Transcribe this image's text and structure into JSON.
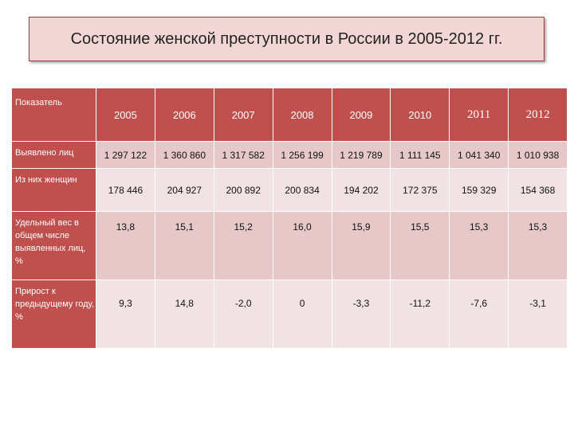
{
  "title": "Состояние женской преступности в России в 2005-2012 гг.",
  "table": {
    "header_label": "Показатель",
    "years": [
      "2005",
      "2006",
      "2007",
      "2008",
      "2009",
      "2010",
      "2011",
      "2012"
    ],
    "rows": [
      {
        "label": "Выявлено лиц",
        "values": [
          "1 297 122",
          "1 360 860",
          "1 317 582",
          "1 256 199",
          "1 219 789",
          "1 111 145",
          "1 041 340",
          "1 010 938"
        ]
      },
      {
        "label": "Из них женщин",
        "values": [
          "178 446",
          "204 927",
          "200 892",
          "200 834",
          "194 202",
          "172 375",
          "159 329",
          "154 368"
        ]
      },
      {
        "label": "Удельный вес в общем числе выявленных лиц, %",
        "values": [
          "13,8",
          "15,1",
          "15,2",
          "16,0",
          "15,9",
          "15,5",
          "15,3",
          "15,3"
        ]
      },
      {
        "label": "Прирост к предыдущему году, %",
        "values": [
          "9,3",
          "14,8",
          "-2,0",
          "0",
          "-3,3",
          "-11,2",
          "-7,6",
          "-3,1"
        ]
      }
    ]
  },
  "colors": {
    "header_bg": "#c0504d",
    "row_dark": "#e6c8c8",
    "row_light": "#f1e3e3",
    "title_bg": "#f2d6d6"
  }
}
